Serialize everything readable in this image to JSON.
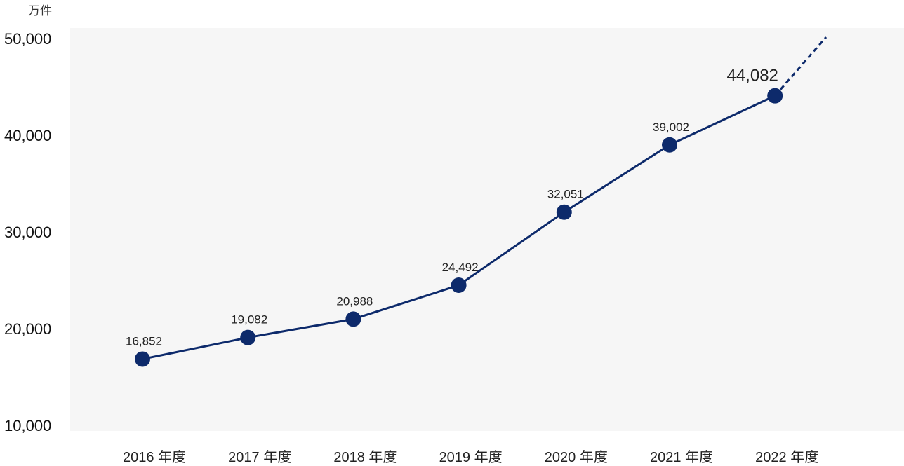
{
  "chart_data": {
    "type": "line",
    "unit": "万件",
    "categories": [
      "2016 年度",
      "2017 年度",
      "2018 年度",
      "2019 年度",
      "2020 年度",
      "2021 年度",
      "2022 年度"
    ],
    "values": [
      16852,
      19082,
      20988,
      24492,
      32051,
      39002,
      44082
    ],
    "data_labels": [
      "16,852",
      "19,082",
      "20,988",
      "24,492",
      "32,051",
      "39,002",
      "44,082"
    ],
    "yticks": [
      "10,000",
      "20,000",
      "30,000",
      "40,000",
      "50,000"
    ],
    "ytick_values": [
      10000,
      20000,
      30000,
      40000,
      50000
    ],
    "ylim": [
      10000,
      50000
    ],
    "grid": false,
    "trend_extension": "dashed",
    "colors": {
      "line": "#0d2a6b",
      "plot_bg": "#f6f6f6"
    }
  }
}
